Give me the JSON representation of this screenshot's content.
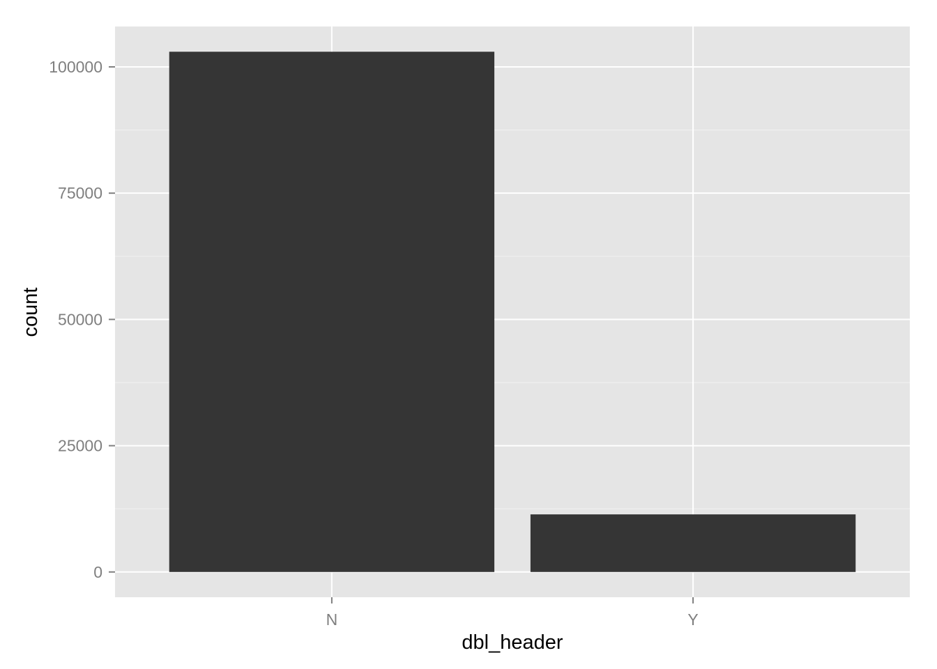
{
  "chart_data": {
    "type": "bar",
    "categories": [
      "N",
      "Y"
    ],
    "values": [
      103000,
      11400
    ],
    "xlabel": "dbl_header",
    "ylabel": "count",
    "ylim": [
      -5000,
      108000
    ],
    "y_ticks": [
      0,
      25000,
      50000,
      75000,
      100000
    ],
    "y_tick_labels": [
      "0",
      "25000",
      "50000",
      "75000",
      "100000"
    ],
    "grid": true,
    "legend": "none",
    "colors": {
      "panel_background": "#e5e5e5",
      "grid_major": "#ffffff",
      "grid_minor": "#f2f2f2",
      "bar_fill": "#353535",
      "tick_label": "#7f7f7f",
      "axis_title": "#000000"
    }
  }
}
